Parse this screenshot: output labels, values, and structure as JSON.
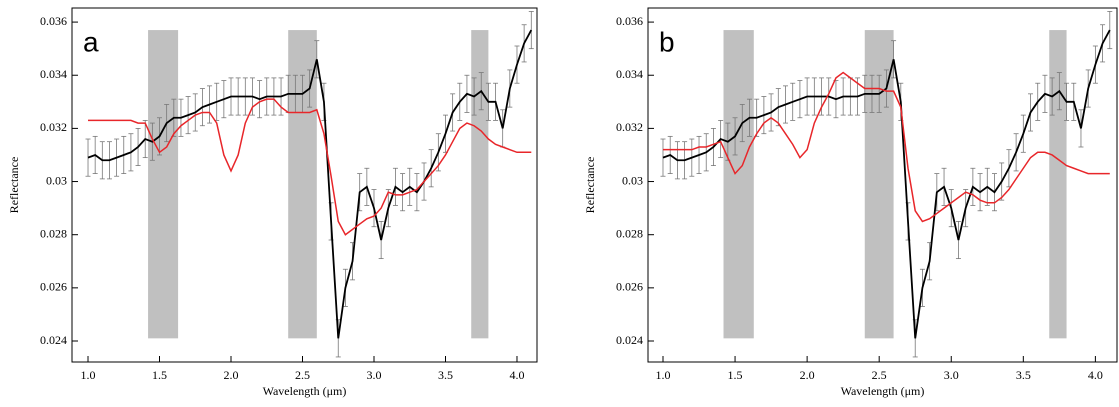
{
  "chart_data": [
    {
      "type": "line",
      "panel_label": "a",
      "x_label": "Wavelength (μm)",
      "y_label": "Reflectance",
      "xlim": [
        0.888,
        4.14
      ],
      "ylim": [
        0.02321,
        0.03653
      ],
      "xticks": [
        {
          "value": 1,
          "label": "1.0"
        },
        1.5,
        {
          "value": 2,
          "label": "2.0"
        },
        2.5,
        {
          "value": 3,
          "label": "3.0"
        },
        3.5,
        {
          "value": 4,
          "label": "4.0"
        }
      ],
      "yticks": [
        0.024,
        0.026,
        0.028,
        0.03,
        0.032,
        0.034,
        0.036
      ],
      "shaded_regions": [
        {
          "x": [
            1.42,
            1.63
          ],
          "y": [
            0.0241,
            0.0357
          ]
        },
        {
          "x": [
            2.4,
            2.6
          ],
          "y": [
            0.0241,
            0.0357
          ]
        },
        {
          "x": [
            3.68,
            3.8
          ],
          "y": [
            0.0241,
            0.0357
          ]
        }
      ],
      "shade_color": "#c0c0c0",
      "x": [
        1.0,
        1.05,
        1.1,
        1.15,
        1.2,
        1.25,
        1.3,
        1.35,
        1.4,
        1.45,
        1.5,
        1.55,
        1.6,
        1.65,
        1.7,
        1.75,
        1.8,
        1.85,
        1.9,
        1.95,
        2.0,
        2.05,
        2.1,
        2.15,
        2.2,
        2.25,
        2.3,
        2.35,
        2.4,
        2.45,
        2.5,
        2.55,
        2.6,
        2.65,
        2.7,
        2.75,
        2.8,
        2.85,
        2.9,
        2.95,
        3.0,
        3.05,
        3.1,
        3.15,
        3.2,
        3.25,
        3.3,
        3.35,
        3.4,
        3.45,
        3.5,
        3.55,
        3.6,
        3.65,
        3.7,
        3.75,
        3.8,
        3.85,
        3.9,
        3.95,
        4.0,
        4.05,
        4.1
      ],
      "series": [
        {
          "color": "#000000",
          "values": [
            0.0309,
            0.031,
            0.0308,
            0.0308,
            0.0309,
            0.031,
            0.0311,
            0.0313,
            0.0316,
            0.0315,
            0.0317,
            0.0322,
            0.0324,
            0.0324,
            0.0325,
            0.0326,
            0.0328,
            0.0329,
            0.033,
            0.0331,
            0.0332,
            0.0332,
            0.0332,
            0.0332,
            0.0331,
            0.0332,
            0.0332,
            0.0332,
            0.0333,
            0.0333,
            0.0333,
            0.0335,
            0.0346,
            0.033,
            0.0285,
            0.0241,
            0.026,
            0.027,
            0.0296,
            0.0298,
            0.029,
            0.0278,
            0.029,
            0.0298,
            0.0296,
            0.0298,
            0.0296,
            0.03,
            0.0305,
            0.0311,
            0.0318,
            0.0326,
            0.033,
            0.0333,
            0.0332,
            0.0334,
            0.033,
            0.033,
            0.032,
            0.0335,
            0.0344,
            0.0352,
            0.0357
          ],
          "errors": [
            0.0007,
            0.0007,
            0.0007,
            0.0007,
            0.0007,
            0.0007,
            0.0007,
            0.0007,
            0.0007,
            0.0007,
            0.0007,
            0.0007,
            0.0007,
            0.0007,
            0.0007,
            0.0007,
            0.0007,
            0.0007,
            0.0007,
            0.0007,
            0.0007,
            0.0007,
            0.0007,
            0.0007,
            0.0007,
            0.0007,
            0.0007,
            0.0007,
            0.0007,
            0.0007,
            0.0007,
            0.0007,
            0.0007,
            0.0007,
            0.0007,
            0.0007,
            0.0007,
            0.0007,
            0.0007,
            0.0007,
            0.0007,
            0.0007,
            0.0007,
            0.0007,
            0.0007,
            0.0007,
            0.0007,
            0.0007,
            0.0007,
            0.0007,
            0.0007,
            0.0007,
            0.0007,
            0.0007,
            0.0007,
            0.0007,
            0.0007,
            0.0007,
            0.0007,
            0.0007,
            0.0007,
            0.0007,
            0.0007
          ]
        },
        {
          "color": "#e8262a",
          "values": [
            0.0323,
            0.0323,
            0.0323,
            0.0323,
            0.0323,
            0.0323,
            0.0323,
            0.0322,
            0.0322,
            0.0316,
            0.0311,
            0.0313,
            0.0318,
            0.0321,
            0.0323,
            0.0325,
            0.0326,
            0.0326,
            0.0322,
            0.031,
            0.0304,
            0.031,
            0.0322,
            0.0328,
            0.033,
            0.0331,
            0.0331,
            0.0328,
            0.0326,
            0.0326,
            0.0326,
            0.0326,
            0.0327,
            0.0318,
            0.0302,
            0.0285,
            0.028,
            0.0282,
            0.0284,
            0.0286,
            0.0287,
            0.029,
            0.0296,
            0.0295,
            0.0295,
            0.0296,
            0.0297,
            0.03,
            0.0303,
            0.0306,
            0.031,
            0.0315,
            0.032,
            0.0322,
            0.0321,
            0.0319,
            0.0316,
            0.0314,
            0.0313,
            0.0312,
            0.0311,
            0.0311,
            0.0311
          ]
        }
      ]
    },
    {
      "type": "line",
      "panel_label": "b",
      "x_label": "Wavelength (μm)",
      "y_label": "Reflectance",
      "xlim": [
        0.896,
        4.15
      ],
      "ylim": [
        0.02321,
        0.03653
      ],
      "xticks": [
        {
          "value": 1,
          "label": "1.0"
        },
        1.5,
        {
          "value": 2,
          "label": "2.0"
        },
        2.5,
        {
          "value": 3,
          "label": "3.0"
        },
        3.5,
        {
          "value": 4,
          "label": "4.0"
        }
      ],
      "yticks": [
        0.024,
        0.026,
        0.028,
        0.03,
        0.032,
        0.034,
        0.036
      ],
      "shaded_regions": [
        {
          "x": [
            1.42,
            1.63
          ],
          "y": [
            0.0241,
            0.0357
          ]
        },
        {
          "x": [
            2.4,
            2.6
          ],
          "y": [
            0.0241,
            0.0357
          ]
        },
        {
          "x": [
            3.68,
            3.8
          ],
          "y": [
            0.0241,
            0.0357
          ]
        }
      ],
      "shade_color": "#c0c0c0",
      "x": [
        1.0,
        1.05,
        1.1,
        1.15,
        1.2,
        1.25,
        1.3,
        1.35,
        1.4,
        1.45,
        1.5,
        1.55,
        1.6,
        1.65,
        1.7,
        1.75,
        1.8,
        1.85,
        1.9,
        1.95,
        2.0,
        2.05,
        2.1,
        2.15,
        2.2,
        2.25,
        2.3,
        2.35,
        2.4,
        2.45,
        2.5,
        2.55,
        2.6,
        2.65,
        2.7,
        2.75,
        2.8,
        2.85,
        2.9,
        2.95,
        3.0,
        3.05,
        3.1,
        3.15,
        3.2,
        3.25,
        3.3,
        3.35,
        3.4,
        3.45,
        3.5,
        3.55,
        3.6,
        3.65,
        3.7,
        3.75,
        3.8,
        3.85,
        3.9,
        3.95,
        4.0,
        4.05,
        4.1
      ],
      "series": [
        {
          "color": "#000000",
          "values": [
            0.0309,
            0.031,
            0.0308,
            0.0308,
            0.0309,
            0.031,
            0.0311,
            0.0313,
            0.0316,
            0.0315,
            0.0317,
            0.0322,
            0.0324,
            0.0324,
            0.0325,
            0.0326,
            0.0328,
            0.0329,
            0.033,
            0.0331,
            0.0332,
            0.0332,
            0.0332,
            0.0332,
            0.0331,
            0.0332,
            0.0332,
            0.0332,
            0.0333,
            0.0333,
            0.0333,
            0.0335,
            0.0346,
            0.033,
            0.0285,
            0.0241,
            0.026,
            0.027,
            0.0296,
            0.0298,
            0.029,
            0.0278,
            0.029,
            0.0298,
            0.0296,
            0.0298,
            0.0296,
            0.03,
            0.0305,
            0.0311,
            0.0318,
            0.0326,
            0.033,
            0.0333,
            0.0332,
            0.0334,
            0.033,
            0.033,
            0.032,
            0.0335,
            0.0344,
            0.0352,
            0.0357
          ],
          "errors": [
            0.0007,
            0.0007,
            0.0007,
            0.0007,
            0.0007,
            0.0007,
            0.0007,
            0.0007,
            0.0007,
            0.0007,
            0.0007,
            0.0007,
            0.0007,
            0.0007,
            0.0007,
            0.0007,
            0.0007,
            0.0007,
            0.0007,
            0.0007,
            0.0007,
            0.0007,
            0.0007,
            0.0007,
            0.0007,
            0.0007,
            0.0007,
            0.0007,
            0.0007,
            0.0007,
            0.0007,
            0.0007,
            0.0007,
            0.0007,
            0.0007,
            0.0007,
            0.0007,
            0.0007,
            0.0007,
            0.0007,
            0.0007,
            0.0007,
            0.0007,
            0.0007,
            0.0007,
            0.0007,
            0.0007,
            0.0007,
            0.0007,
            0.0007,
            0.0007,
            0.0007,
            0.0007,
            0.0007,
            0.0007,
            0.0007,
            0.0007,
            0.0007,
            0.0007,
            0.0007,
            0.0007,
            0.0007,
            0.0007
          ]
        },
        {
          "color": "#e8262a",
          "values": [
            0.0312,
            0.0312,
            0.0312,
            0.0312,
            0.0312,
            0.0313,
            0.0313,
            0.0314,
            0.0315,
            0.0309,
            0.0303,
            0.0306,
            0.0313,
            0.0318,
            0.0322,
            0.0324,
            0.0322,
            0.0318,
            0.0314,
            0.0309,
            0.0312,
            0.0322,
            0.0328,
            0.0333,
            0.0339,
            0.0341,
            0.0339,
            0.0337,
            0.0335,
            0.0335,
            0.0335,
            0.0334,
            0.0334,
            0.0328,
            0.0305,
            0.0289,
            0.0285,
            0.0286,
            0.0288,
            0.029,
            0.0292,
            0.0294,
            0.0296,
            0.0295,
            0.0293,
            0.0292,
            0.0292,
            0.0294,
            0.0297,
            0.0301,
            0.0305,
            0.0309,
            0.0311,
            0.0311,
            0.031,
            0.0308,
            0.0306,
            0.0305,
            0.0304,
            0.0303,
            0.0303,
            0.0303,
            0.0303
          ]
        }
      ]
    }
  ]
}
